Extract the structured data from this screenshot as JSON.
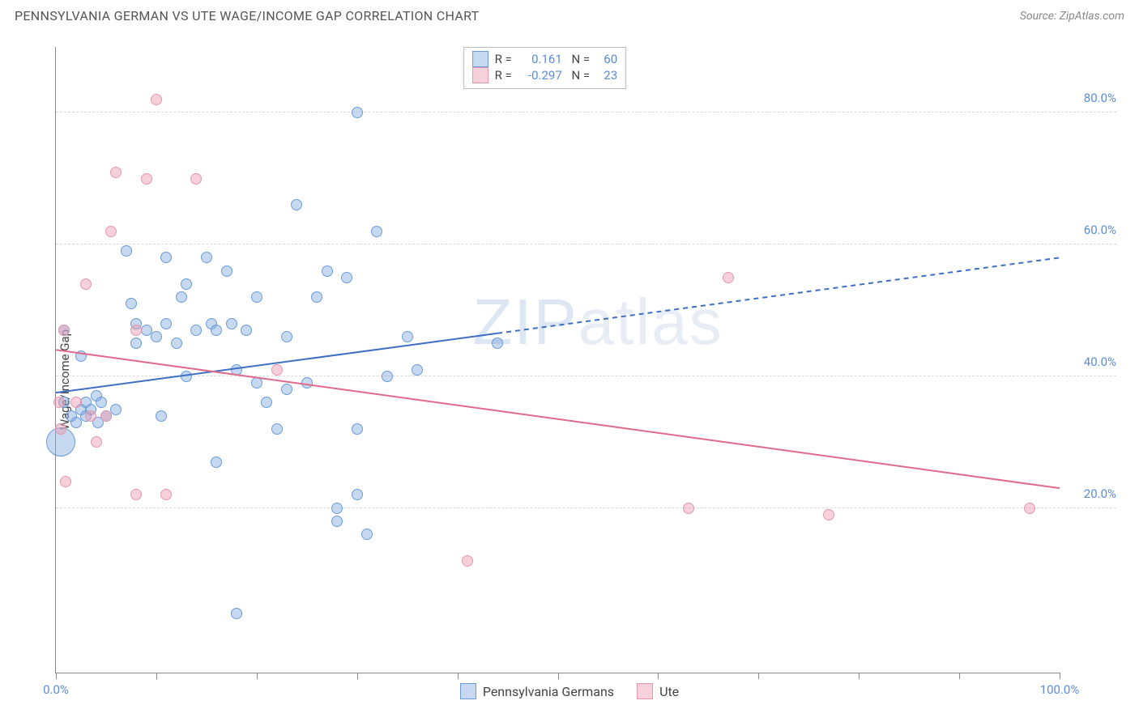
{
  "title": "PENNSYLVANIA GERMAN VS UTE WAGE/INCOME GAP CORRELATION CHART",
  "source": "Source: ZipAtlas.com",
  "ylabel": "Wage/Income Gap",
  "watermark": "ZIPatlas",
  "chart": {
    "type": "scatter",
    "xlim": [
      0,
      100
    ],
    "ylim": [
      -5,
      90
    ],
    "xticks": [
      0,
      10,
      20,
      30,
      40,
      50,
      60,
      70,
      80,
      90,
      100
    ],
    "xtick_labels": {
      "0": "0.0%",
      "100": "100.0%"
    },
    "yticks": [
      20,
      40,
      60,
      80
    ],
    "ytick_labels": [
      "20.0%",
      "40.0%",
      "60.0%",
      "80.0%"
    ],
    "grid_color": "#d9d9d9",
    "background_color": "#ffffff",
    "axis_color": "#888888",
    "tick_label_color": "#5b8dd6",
    "series": [
      {
        "name": "Pennsylvania Germans",
        "fill": "rgba(130,170,225,0.45)",
        "stroke": "#6a9bd8",
        "R": "0.161",
        "N": "60",
        "trend": {
          "x1": 0,
          "y1": 37.5,
          "x2": 100,
          "y2": 58,
          "solid_until_x": 44,
          "color": "#3d6fc4",
          "width": 2
        },
        "points": [
          {
            "x": 0.5,
            "y": 30,
            "r": 18
          },
          {
            "x": 0.8,
            "y": 36,
            "r": 7
          },
          {
            "x": 0.8,
            "y": 47,
            "r": 7
          },
          {
            "x": 1.5,
            "y": 34,
            "r": 7
          },
          {
            "x": 2,
            "y": 33,
            "r": 7
          },
          {
            "x": 2.5,
            "y": 35,
            "r": 7
          },
          {
            "x": 2.5,
            "y": 43,
            "r": 7
          },
          {
            "x": 3,
            "y": 34,
            "r": 7
          },
          {
            "x": 3,
            "y": 36,
            "r": 7
          },
          {
            "x": 3.5,
            "y": 35,
            "r": 7
          },
          {
            "x": 4,
            "y": 37,
            "r": 7
          },
          {
            "x": 4.2,
            "y": 33,
            "r": 7
          },
          {
            "x": 4.5,
            "y": 36,
            "r": 7
          },
          {
            "x": 5,
            "y": 34,
            "r": 7
          },
          {
            "x": 6,
            "y": 35,
            "r": 7
          },
          {
            "x": 7,
            "y": 59,
            "r": 7
          },
          {
            "x": 7.5,
            "y": 51,
            "r": 7
          },
          {
            "x": 8,
            "y": 45,
            "r": 7
          },
          {
            "x": 8,
            "y": 48,
            "r": 7
          },
          {
            "x": 9,
            "y": 47,
            "r": 7
          },
          {
            "x": 10,
            "y": 46,
            "r": 7
          },
          {
            "x": 10.5,
            "y": 34,
            "r": 7
          },
          {
            "x": 11,
            "y": 58,
            "r": 7
          },
          {
            "x": 11,
            "y": 48,
            "r": 7
          },
          {
            "x": 12,
            "y": 45,
            "r": 7
          },
          {
            "x": 12.5,
            "y": 52,
            "r": 7
          },
          {
            "x": 13,
            "y": 54,
            "r": 7
          },
          {
            "x": 13,
            "y": 40,
            "r": 7
          },
          {
            "x": 14,
            "y": 47,
            "r": 7
          },
          {
            "x": 15,
            "y": 58,
            "r": 7
          },
          {
            "x": 15.5,
            "y": 48,
            "r": 7
          },
          {
            "x": 16,
            "y": 47,
            "r": 7
          },
          {
            "x": 16,
            "y": 27,
            "r": 7
          },
          {
            "x": 17,
            "y": 56,
            "r": 7
          },
          {
            "x": 17.5,
            "y": 48,
            "r": 7
          },
          {
            "x": 18,
            "y": 41,
            "r": 7
          },
          {
            "x": 18,
            "y": 4,
            "r": 7
          },
          {
            "x": 19,
            "y": 47,
            "r": 7
          },
          {
            "x": 20,
            "y": 39,
            "r": 7
          },
          {
            "x": 20,
            "y": 52,
            "r": 7
          },
          {
            "x": 21,
            "y": 36,
            "r": 7
          },
          {
            "x": 22,
            "y": 32,
            "r": 7
          },
          {
            "x": 23,
            "y": 46,
            "r": 7
          },
          {
            "x": 23,
            "y": 38,
            "r": 7
          },
          {
            "x": 24,
            "y": 66,
            "r": 7
          },
          {
            "x": 25,
            "y": 39,
            "r": 7
          },
          {
            "x": 26,
            "y": 52,
            "r": 7
          },
          {
            "x": 27,
            "y": 56,
            "r": 7
          },
          {
            "x": 28,
            "y": 18,
            "r": 7
          },
          {
            "x": 28,
            "y": 20,
            "r": 7
          },
          {
            "x": 29,
            "y": 55,
            "r": 7
          },
          {
            "x": 30,
            "y": 32,
            "r": 7
          },
          {
            "x": 30,
            "y": 22,
            "r": 7
          },
          {
            "x": 30,
            "y": 80,
            "r": 7
          },
          {
            "x": 31,
            "y": 16,
            "r": 7
          },
          {
            "x": 32,
            "y": 62,
            "r": 7
          },
          {
            "x": 33,
            "y": 40,
            "r": 7
          },
          {
            "x": 35,
            "y": 46,
            "r": 7
          },
          {
            "x": 36,
            "y": 41,
            "r": 7
          },
          {
            "x": 44,
            "y": 45,
            "r": 7
          }
        ]
      },
      {
        "name": "Ute",
        "fill": "rgba(235,150,175,0.45)",
        "stroke": "#e398ae",
        "R": "-0.297",
        "N": "23",
        "trend": {
          "x1": 0,
          "y1": 44,
          "x2": 100,
          "y2": 23,
          "solid_until_x": 100,
          "color": "#e06a8c",
          "width": 2
        },
        "points": [
          {
            "x": 0.3,
            "y": 36,
            "r": 7
          },
          {
            "x": 0.5,
            "y": 32,
            "r": 7
          },
          {
            "x": 0.8,
            "y": 47,
            "r": 7
          },
          {
            "x": 1,
            "y": 24,
            "r": 7
          },
          {
            "x": 2,
            "y": 36,
            "r": 7
          },
          {
            "x": 3,
            "y": 54,
            "r": 7
          },
          {
            "x": 3.5,
            "y": 34,
            "r": 7
          },
          {
            "x": 4,
            "y": 30,
            "r": 7
          },
          {
            "x": 5,
            "y": 34,
            "r": 7
          },
          {
            "x": 5.5,
            "y": 62,
            "r": 7
          },
          {
            "x": 6,
            "y": 71,
            "r": 7
          },
          {
            "x": 8,
            "y": 47,
            "r": 7
          },
          {
            "x": 8,
            "y": 22,
            "r": 7
          },
          {
            "x": 9,
            "y": 70,
            "r": 7
          },
          {
            "x": 10,
            "y": 82,
            "r": 7
          },
          {
            "x": 11,
            "y": 22,
            "r": 7
          },
          {
            "x": 14,
            "y": 70,
            "r": 7
          },
          {
            "x": 22,
            "y": 41,
            "r": 7
          },
          {
            "x": 41,
            "y": 12,
            "r": 7
          },
          {
            "x": 63,
            "y": 20,
            "r": 7
          },
          {
            "x": 67,
            "y": 55,
            "r": 7
          },
          {
            "x": 77,
            "y": 19,
            "r": 7
          },
          {
            "x": 97,
            "y": 20,
            "r": 7
          }
        ]
      }
    ],
    "legend_bottom": [
      "Pennsylvania Germans",
      "Ute"
    ]
  }
}
